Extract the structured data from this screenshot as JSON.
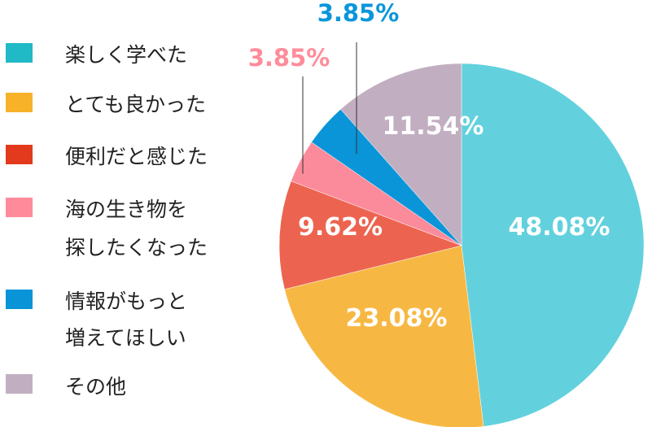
{
  "chart_data": {
    "type": "pie",
    "categories": [
      "楽しく学べた",
      "とても良かった",
      "便利だと感じた",
      "海の生き物を\n探したくなった",
      "情報がもっと\n増えてほしい",
      "その他"
    ],
    "values": [
      48.08,
      23.08,
      9.62,
      3.85,
      3.85,
      11.54
    ],
    "value_labels": [
      "48.08%",
      "23.08%",
      "9.62%",
      "3.85%",
      "3.85%",
      "11.54%"
    ],
    "colors": [
      "#62d1dd",
      "#f7b843",
      "#ec6450",
      "#fb8b9b",
      "#0a95d8",
      "#c1afc1"
    ],
    "legend_colors": [
      "#20b9c6",
      "#f7b22a",
      "#e3391c",
      "#ff8a9a",
      "#0a94d8",
      "#c1afc1"
    ],
    "outer_label_colors": [
      "",
      "",
      "",
      "#ff8c9a",
      "#0a96da",
      ""
    ],
    "start": "12 o'clock",
    "direction": "clockwise",
    "legend_position": "left"
  }
}
